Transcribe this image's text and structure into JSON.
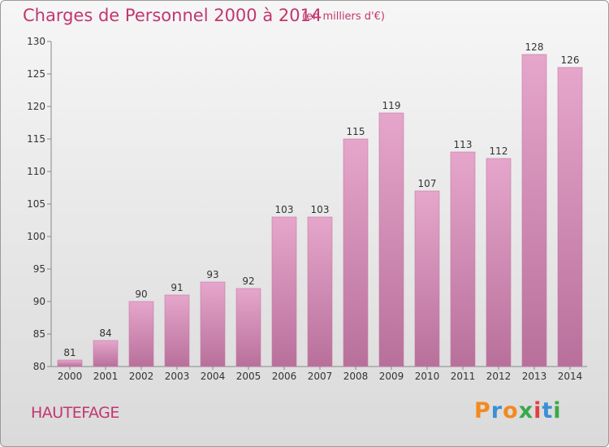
{
  "header": {
    "title": "Charges de Personnel 2000 à 2014",
    "subtitle": "(en milliers d'€)"
  },
  "footer": {
    "place": "HAUTEFAGE",
    "logo_text": "Proxiti"
  },
  "colors": {
    "title": "#c2366f",
    "bar_top": "#e6a6cb",
    "bar_bottom": "#b8709b",
    "logo": [
      "#f28a1e",
      "#3a8fd6",
      "#f28a1e",
      "#3aa84b",
      "#e23f3f",
      "#3a8fd6",
      "#3aa84b"
    ]
  },
  "chart_data": {
    "type": "bar",
    "categories": [
      "2000",
      "2001",
      "2002",
      "2003",
      "2004",
      "2005",
      "2006",
      "2007",
      "2008",
      "2009",
      "2010",
      "2011",
      "2012",
      "2013",
      "2014"
    ],
    "values": [
      81,
      84,
      90,
      91,
      93,
      92,
      103,
      103,
      115,
      119,
      107,
      113,
      112,
      128,
      126
    ],
    "ylim": [
      80,
      130
    ],
    "yticks": [
      80,
      85,
      90,
      95,
      100,
      105,
      110,
      115,
      120,
      125,
      130
    ],
    "data_labels": true,
    "grid": false
  }
}
